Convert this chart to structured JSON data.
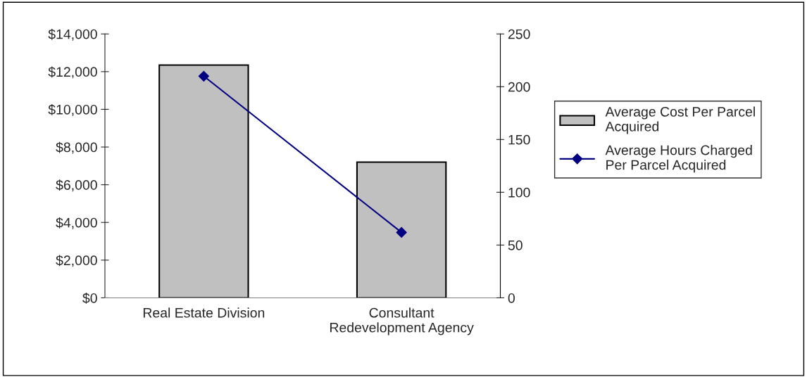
{
  "chart_data": {
    "type": "bar",
    "categories": [
      "Real Estate Division",
      "Consultant\nRedevelopment Agency"
    ],
    "series": [
      {
        "name": "Average Cost Per Parcel\nAcquired",
        "color": "#c0c0c0",
        "values": [
          12350,
          7200
        ]
      },
      {
        "name": "Average Hours Charged\nPer Parcel Acquired",
        "type": "line",
        "axis": "y2",
        "color": "#000080",
        "marker": "diamond",
        "values": [
          210,
          62
        ]
      }
    ],
    "ylim": [
      0,
      14000
    ],
    "yticks": [
      {
        "value": 0,
        "label": "$0"
      },
      {
        "value": 2000,
        "label": "$2,000"
      },
      {
        "value": 4000,
        "label": "$4,000"
      },
      {
        "value": 6000,
        "label": "$6,000"
      },
      {
        "value": 8000,
        "label": "$8,000"
      },
      {
        "value": 10000,
        "label": "$10,000"
      },
      {
        "value": 12000,
        "label": "$12,000"
      },
      {
        "value": 14000,
        "label": "$14,000"
      }
    ],
    "y2lim": [
      0,
      250
    ],
    "y2ticks": [
      0,
      50,
      100,
      150,
      200,
      250
    ],
    "grid": false,
    "legend": "right"
  }
}
